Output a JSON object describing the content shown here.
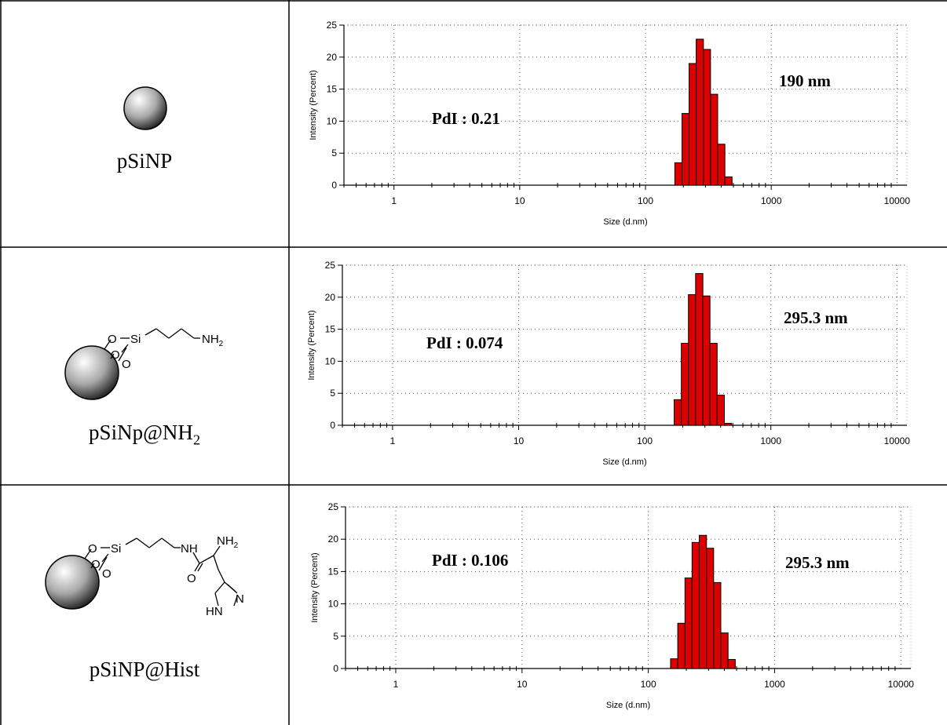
{
  "rows": [
    {
      "sample": "pSiNP",
      "sample_sub": "",
      "structure": "sphere",
      "pdi": "PdI : 0.21",
      "size": "190 nm"
    },
    {
      "sample": "pSiNp@NH",
      "sample_sub": "2",
      "structure": "amine",
      "pdi": "PdI : 0.074",
      "size": "295.3 nm"
    },
    {
      "sample": "pSiNP@Hist",
      "sample_sub": "",
      "structure": "histidine",
      "pdi": "PdI : 0.106",
      "size": "295.3 nm"
    }
  ],
  "structures": {
    "amine": {
      "o": "O",
      "si": "Si",
      "nh2": "NH",
      "sub2": "2"
    },
    "histidine": {
      "o": "O",
      "si": "Si",
      "nh": "NH",
      "nh2": "NH",
      "sub2": "2",
      "carbonyl_o": "O",
      "ring_n": "N",
      "ring_hn": "HN"
    }
  },
  "colors": {
    "bar": "#dd0000",
    "bar_edge": "#000000"
  },
  "chart_data": [
    {
      "type": "bar",
      "xlabel": "Size (d.nm)",
      "ylabel": "Intensity (Percent)",
      "xscale": "log",
      "xlim": [
        0.4,
        12000
      ],
      "ylim": [
        0,
        25
      ],
      "xticks": [
        1,
        10,
        100,
        1000,
        10000
      ],
      "xticklabels": [
        "1",
        "10",
        "100",
        "1000",
        "10000"
      ],
      "yticks": [
        0,
        5,
        10,
        15,
        20,
        25
      ],
      "grid": "dotted",
      "bin_edges": [
        171,
        195,
        222,
        253,
        289,
        329,
        375,
        428,
        488,
        557
      ],
      "values": [
        3.5,
        11.2,
        19.0,
        22.8,
        21.2,
        14.2,
        6.4,
        1.3,
        0
      ]
    },
    {
      "type": "bar",
      "xlabel": "Size (d.nm)",
      "ylabel": "Intensity (Percent)",
      "xscale": "log",
      "xlim": [
        0.4,
        12000
      ],
      "ylim": [
        0,
        25
      ],
      "xticks": [
        1,
        10,
        100,
        1000,
        10000
      ],
      "xticklabels": [
        "1",
        "10",
        "100",
        "1000",
        "10000"
      ],
      "yticks": [
        0,
        5,
        10,
        15,
        20,
        25
      ],
      "grid": "dotted",
      "bin_edges": [
        171,
        195,
        222,
        253,
        289,
        329,
        375,
        428,
        488,
        557
      ],
      "values": [
        4.0,
        12.8,
        20.4,
        23.7,
        20.2,
        12.8,
        4.7,
        0.3,
        0
      ]
    },
    {
      "type": "bar",
      "xlabel": "Size (d.nm)",
      "ylabel": "Intensity (Percent)",
      "xscale": "log",
      "xlim": [
        0.4,
        12000
      ],
      "ylim": [
        0,
        25
      ],
      "xticks": [
        1,
        10,
        100,
        1000,
        10000
      ],
      "xticklabels": [
        "1",
        "10",
        "100",
        "1000",
        "10000"
      ],
      "yticks": [
        0,
        5,
        10,
        15,
        20,
        25
      ],
      "grid": "dotted",
      "bin_edges": [
        150,
        171,
        195,
        222,
        253,
        289,
        329,
        375,
        428,
        488,
        557
      ],
      "values": [
        1.5,
        7.0,
        14.0,
        19.5,
        20.6,
        18.6,
        13.3,
        5.5,
        1.4,
        0
      ]
    }
  ]
}
